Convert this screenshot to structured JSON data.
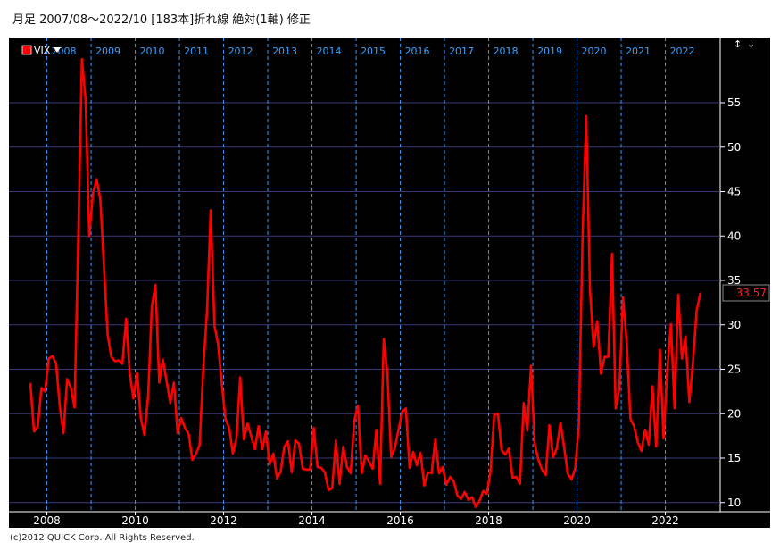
{
  "header": {
    "title": "月足  2007/08〜2022/10 [183本]折れ線 絶対(1軸) 修正"
  },
  "legend": {
    "series_label": "VIX",
    "series_color": "#ff0000"
  },
  "scroll_buttons": {
    "up": "↕",
    "down": "↓"
  },
  "last_value_label": "33.57",
  "footer": {
    "copyright": "(c)2012 QUICK Corp. All Rights Reserved."
  },
  "chart_data": {
    "type": "line",
    "title": "",
    "xlabel": "",
    "ylabel": "",
    "xlim": [
      2007.583,
      2022.833
    ],
    "ylim": [
      9.3,
      61.3
    ],
    "grid": true,
    "y_ticks": [
      10,
      15,
      20,
      25,
      30,
      35,
      40,
      45,
      50,
      55
    ],
    "x_ticks": [
      "2008",
      "2010",
      "2012",
      "2014",
      "2016",
      "2018",
      "2020",
      "2022"
    ],
    "x_tick_values": [
      2008,
      2010,
      2012,
      2014,
      2016,
      2018,
      2020,
      2022
    ],
    "year_labels": [
      "2008",
      "2009",
      "2010",
      "2011",
      "2012",
      "2013",
      "2014",
      "2015",
      "2016",
      "2017",
      "2018",
      "2019",
      "2020",
      "2021",
      "2022"
    ],
    "year_values": [
      2008,
      2009,
      2010,
      2011,
      2012,
      2013,
      2014,
      2015,
      2016,
      2017,
      2018,
      2019,
      2020,
      2021,
      2022
    ],
    "series": [
      {
        "name": "VIX",
        "color": "#ff0000",
        "points": [
          [
            2007.625,
            23.4
          ],
          [
            2007.708,
            18.0
          ],
          [
            2007.792,
            18.5
          ],
          [
            2007.875,
            22.9
          ],
          [
            2007.958,
            22.5
          ],
          [
            2008.042,
            26.2
          ],
          [
            2008.125,
            26.5
          ],
          [
            2008.208,
            25.6
          ],
          [
            2008.292,
            20.8
          ],
          [
            2008.375,
            17.8
          ],
          [
            2008.458,
            23.9
          ],
          [
            2008.542,
            22.9
          ],
          [
            2008.625,
            20.7
          ],
          [
            2008.708,
            39.4
          ],
          [
            2008.792,
            59.9
          ],
          [
            2008.875,
            55.3
          ],
          [
            2008.958,
            40.0
          ],
          [
            2009.042,
            44.8
          ],
          [
            2009.125,
            46.4
          ],
          [
            2009.208,
            44.1
          ],
          [
            2009.292,
            36.5
          ],
          [
            2009.375,
            28.9
          ],
          [
            2009.458,
            26.4
          ],
          [
            2009.542,
            25.9
          ],
          [
            2009.625,
            26.0
          ],
          [
            2009.708,
            25.6
          ],
          [
            2009.792,
            30.7
          ],
          [
            2009.875,
            24.5
          ],
          [
            2009.958,
            21.7
          ],
          [
            2010.042,
            24.6
          ],
          [
            2010.125,
            19.5
          ],
          [
            2010.208,
            17.6
          ],
          [
            2010.292,
            22.0
          ],
          [
            2010.375,
            32.1
          ],
          [
            2010.458,
            34.5
          ],
          [
            2010.542,
            23.5
          ],
          [
            2010.625,
            26.1
          ],
          [
            2010.708,
            23.7
          ],
          [
            2010.792,
            21.2
          ],
          [
            2010.875,
            23.5
          ],
          [
            2010.958,
            17.8
          ],
          [
            2011.042,
            19.5
          ],
          [
            2011.125,
            18.4
          ],
          [
            2011.208,
            17.7
          ],
          [
            2011.292,
            14.8
          ],
          [
            2011.375,
            15.5
          ],
          [
            2011.458,
            16.5
          ],
          [
            2011.542,
            25.3
          ],
          [
            2011.625,
            31.6
          ],
          [
            2011.708,
            42.9
          ],
          [
            2011.792,
            29.9
          ],
          [
            2011.875,
            27.8
          ],
          [
            2011.958,
            23.4
          ],
          [
            2012.042,
            19.4
          ],
          [
            2012.125,
            18.4
          ],
          [
            2012.208,
            15.5
          ],
          [
            2012.292,
            17.2
          ],
          [
            2012.375,
            24.1
          ],
          [
            2012.458,
            17.1
          ],
          [
            2012.542,
            18.9
          ],
          [
            2012.625,
            17.5
          ],
          [
            2012.708,
            16.0
          ],
          [
            2012.792,
            18.6
          ],
          [
            2012.875,
            16.0
          ],
          [
            2012.958,
            18.0
          ],
          [
            2013.042,
            14.3
          ],
          [
            2013.125,
            15.5
          ],
          [
            2013.208,
            12.7
          ],
          [
            2013.292,
            13.5
          ],
          [
            2013.375,
            16.3
          ],
          [
            2013.458,
            16.9
          ],
          [
            2013.542,
            13.4
          ],
          [
            2013.625,
            17.0
          ],
          [
            2013.708,
            16.6
          ],
          [
            2013.792,
            13.8
          ],
          [
            2013.875,
            13.7
          ],
          [
            2013.958,
            13.7
          ],
          [
            2014.042,
            18.4
          ],
          [
            2014.125,
            14.0
          ],
          [
            2014.208,
            13.9
          ],
          [
            2014.292,
            13.4
          ],
          [
            2014.375,
            11.4
          ],
          [
            2014.458,
            11.6
          ],
          [
            2014.542,
            17.0
          ],
          [
            2014.625,
            12.1
          ],
          [
            2014.708,
            16.3
          ],
          [
            2014.792,
            14.0
          ],
          [
            2014.875,
            13.3
          ],
          [
            2014.958,
            19.2
          ],
          [
            2015.042,
            20.9
          ],
          [
            2015.125,
            13.3
          ],
          [
            2015.208,
            15.3
          ],
          [
            2015.292,
            14.6
          ],
          [
            2015.375,
            13.8
          ],
          [
            2015.458,
            18.2
          ],
          [
            2015.542,
            12.1
          ],
          [
            2015.625,
            28.4
          ],
          [
            2015.708,
            24.5
          ],
          [
            2015.792,
            15.1
          ],
          [
            2015.875,
            16.1
          ],
          [
            2015.958,
            18.2
          ],
          [
            2016.042,
            20.2
          ],
          [
            2016.125,
            20.6
          ],
          [
            2016.208,
            13.9
          ],
          [
            2016.292,
            15.7
          ],
          [
            2016.375,
            14.2
          ],
          [
            2016.458,
            15.6
          ],
          [
            2016.542,
            11.9
          ],
          [
            2016.625,
            13.4
          ],
          [
            2016.708,
            13.3
          ],
          [
            2016.792,
            17.1
          ],
          [
            2016.875,
            13.3
          ],
          [
            2016.958,
            14.0
          ],
          [
            2017.042,
            11.99
          ],
          [
            2017.125,
            12.9
          ],
          [
            2017.208,
            12.4
          ],
          [
            2017.292,
            10.8
          ],
          [
            2017.375,
            10.4
          ],
          [
            2017.458,
            11.2
          ],
          [
            2017.542,
            10.3
          ],
          [
            2017.625,
            10.6
          ],
          [
            2017.708,
            9.5
          ],
          [
            2017.792,
            10.2
          ],
          [
            2017.875,
            11.3
          ],
          [
            2017.958,
            11.0
          ],
          [
            2018.042,
            13.5
          ],
          [
            2018.125,
            19.9
          ],
          [
            2018.208,
            20.0
          ],
          [
            2018.292,
            15.9
          ],
          [
            2018.375,
            15.4
          ],
          [
            2018.458,
            16.1
          ],
          [
            2018.542,
            12.8
          ],
          [
            2018.625,
            12.9
          ],
          [
            2018.708,
            12.1
          ],
          [
            2018.792,
            21.2
          ],
          [
            2018.875,
            18.1
          ],
          [
            2018.958,
            25.4
          ],
          [
            2019.042,
            16.6
          ],
          [
            2019.125,
            14.8
          ],
          [
            2019.208,
            13.7
          ],
          [
            2019.292,
            13.1
          ],
          [
            2019.375,
            18.7
          ],
          [
            2019.458,
            15.1
          ],
          [
            2019.542,
            16.1
          ],
          [
            2019.625,
            19.0
          ],
          [
            2019.708,
            16.2
          ],
          [
            2019.792,
            13.2
          ],
          [
            2019.875,
            12.6
          ],
          [
            2019.958,
            13.8
          ],
          [
            2020.042,
            18.8
          ],
          [
            2020.125,
            40.1
          ],
          [
            2020.208,
            53.5
          ],
          [
            2020.292,
            34.2
          ],
          [
            2020.375,
            27.5
          ],
          [
            2020.458,
            30.4
          ],
          [
            2020.542,
            24.5
          ],
          [
            2020.625,
            26.4
          ],
          [
            2020.708,
            26.4
          ],
          [
            2020.792,
            38.0
          ],
          [
            2020.875,
            20.6
          ],
          [
            2020.958,
            22.8
          ],
          [
            2021.042,
            33.1
          ],
          [
            2021.125,
            27.9
          ],
          [
            2021.208,
            19.4
          ],
          [
            2021.292,
            18.6
          ],
          [
            2021.375,
            16.8
          ],
          [
            2021.458,
            15.8
          ],
          [
            2021.542,
            18.2
          ],
          [
            2021.625,
            16.5
          ],
          [
            2021.708,
            23.1
          ],
          [
            2021.792,
            16.3
          ],
          [
            2021.875,
            27.2
          ],
          [
            2021.958,
            17.2
          ],
          [
            2022.042,
            24.8
          ],
          [
            2022.125,
            30.1
          ],
          [
            2022.208,
            20.6
          ],
          [
            2022.292,
            33.4
          ],
          [
            2022.375,
            26.2
          ],
          [
            2022.458,
            28.7
          ],
          [
            2022.542,
            21.3
          ],
          [
            2022.625,
            25.9
          ],
          [
            2022.708,
            31.6
          ],
          [
            2022.792,
            33.57
          ]
        ]
      }
    ]
  }
}
